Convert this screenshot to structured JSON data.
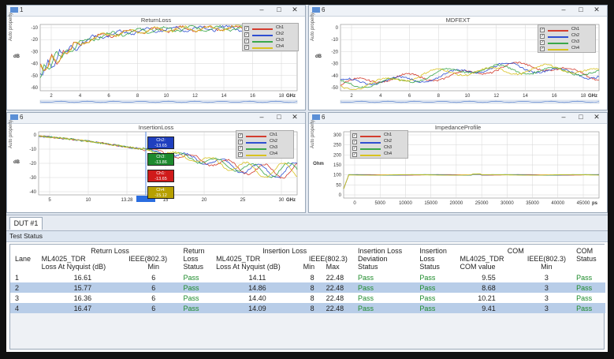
{
  "panels": {
    "return_loss": {
      "number": "1",
      "title": "ReturnLoss",
      "ylabel": "Auto property",
      "unit": "dB",
      "xunit": "GHz",
      "y_ticks": [
        "-10",
        "-20",
        "-30",
        "-40",
        "-50",
        "-60"
      ],
      "x_ticks": [
        "2",
        "4",
        "6",
        "8",
        "10",
        "12",
        "14",
        "16",
        "18"
      ],
      "legend": [
        "Ch1",
        "Ch2",
        "Ch3",
        "Ch4"
      ]
    },
    "mdfext": {
      "number": "6",
      "title": "MDFEXT",
      "ylabel": "Auto property",
      "unit": "dB",
      "xunit": "GHz",
      "y_ticks": [
        "0",
        "-10",
        "-20",
        "-30",
        "-40",
        "-50"
      ],
      "x_ticks": [
        "2",
        "4",
        "6",
        "8",
        "10",
        "12",
        "14",
        "16",
        "18"
      ],
      "legend": [
        "Ch1",
        "Ch2",
        "Ch3",
        "Ch4"
      ]
    },
    "insertion_loss": {
      "number": "6",
      "title": "InsertionLoss",
      "ylabel": "Auto property",
      "unit": "dB",
      "xunit": "GHz",
      "y_ticks": [
        "0",
        "-10",
        "-20",
        "-30",
        "-40"
      ],
      "x_ticks": [
        "5",
        "10",
        "13.28",
        "15",
        "20",
        "25",
        "30"
      ],
      "legend": [
        "Ch1",
        "Ch2",
        "Ch3",
        "Ch4"
      ],
      "markers": [
        {
          "label": "Ch2:",
          "value": "-13.65",
          "color": "#1f3fbf"
        },
        {
          "label": "Ch3:",
          "value": "-13.86",
          "color": "#1d8a2e"
        },
        {
          "label": "Ch1:",
          "value": "-13.65",
          "color": "#d01a1a"
        },
        {
          "label": "Ch4:",
          "value": "-15.12",
          "color": "#b7a000"
        }
      ]
    },
    "impedance_profile": {
      "number": "6",
      "title": "ImpedanceProfile",
      "ylabel": "Auto property",
      "unit": "Ohm",
      "xunit": "ps",
      "y_ticks": [
        "300",
        "250",
        "200",
        "150",
        "100",
        "50",
        "0"
      ],
      "x_ticks": [
        "0",
        "5000",
        "10000",
        "15000",
        "20000",
        "25000",
        "30000",
        "35000",
        "40000",
        "45000"
      ],
      "legend": [
        "Ch1",
        "Ch2",
        "Ch3",
        "Ch4"
      ]
    }
  },
  "series_colors": [
    "#d33c2e",
    "#2f4fd1",
    "#3aa74a",
    "#d8c21f"
  ],
  "tab": "DUT #1",
  "status": {
    "title": "Test Status",
    "headers": {
      "lane": "Lane",
      "return_loss": "Return Loss",
      "rl_ml": "ML4025_TDR",
      "rl_ml2": "Loss At Nyquist (dB)",
      "rl_ieee": "IEEE(802.3)",
      "rl_ieee2": "Min",
      "rl_status1": "Return",
      "rl_status2": "Loss",
      "rl_status3": "Status",
      "insertion_loss": "Insertion Loss",
      "il_ml": "ML4025_TDR",
      "il_ml2": "Loss At Nyquist (dB)",
      "il_ieee": "IEEE(802.3)",
      "il_min": "Min",
      "il_max": "Max",
      "ild1": "Insertion Loss",
      "ild2": "Deviation",
      "ild3": "Status",
      "ils1": "Insertion",
      "ils2": "Loss",
      "ils3": "Status",
      "com": "COM",
      "com_ml": "ML4025_TDR",
      "com_ml2": "COM value",
      "com_ieee": "IEEE(802.3)",
      "com_ieee2": "Min",
      "com_status1": "COM",
      "com_status2": "Status"
    },
    "rows": [
      {
        "lane": "1",
        "rl": "16.61",
        "rl_min": "6",
        "rl_status": "Pass",
        "il": "14.11",
        "il_min": "8",
        "il_max": "22.48",
        "ild_status": "Pass",
        "il_status": "Pass",
        "com": "9.55",
        "com_min": "3",
        "com_status": "Pass"
      },
      {
        "lane": "2",
        "rl": "15.77",
        "rl_min": "6",
        "rl_status": "Pass",
        "il": "14.86",
        "il_min": "8",
        "il_max": "22.48",
        "ild_status": "Pass",
        "il_status": "Pass",
        "com": "8.68",
        "com_min": "3",
        "com_status": "Pass"
      },
      {
        "lane": "3",
        "rl": "16.36",
        "rl_min": "6",
        "rl_status": "Pass",
        "il": "14.40",
        "il_min": "8",
        "il_max": "22.48",
        "ild_status": "Pass",
        "il_status": "Pass",
        "com": "10.21",
        "com_min": "3",
        "com_status": "Pass"
      },
      {
        "lane": "4",
        "rl": "16.47",
        "rl_min": "6",
        "rl_status": "Pass",
        "il": "14.09",
        "il_min": "8",
        "il_max": "22.48",
        "ild_status": "Pass",
        "il_status": "Pass",
        "com": "9.41",
        "com_min": "3",
        "com_status": "Pass"
      }
    ]
  }
}
